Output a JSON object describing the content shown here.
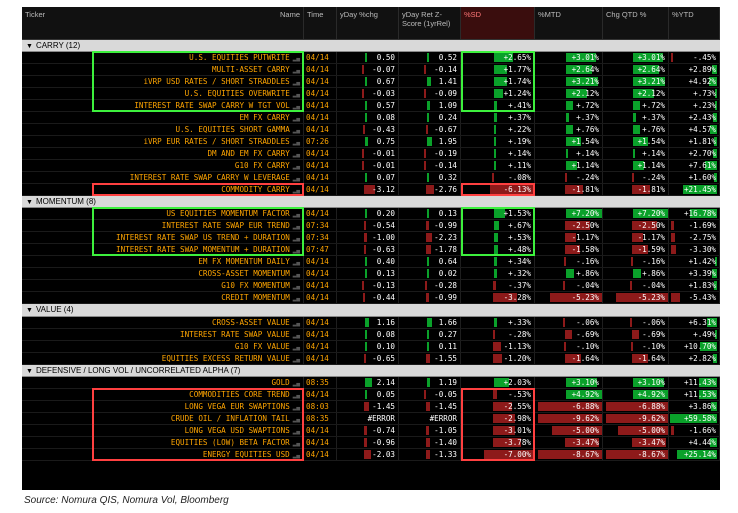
{
  "header": {
    "ticker": "Ticker",
    "name": "Name",
    "time": "Time",
    "yday_chg": "yDay %chg",
    "yday_ret_z": "yDay Ret Z-Score (1yrRel)",
    "sd": "%SD",
    "mtd": "%MTD",
    "qtd": "Chg QTD %",
    "ytd": "%YTD"
  },
  "sections": [
    {
      "title": "CARRY (12)",
      "rows": [
        {
          "name": "U.S. EQUITIES PUTWRITE",
          "time": "04/14",
          "yd": "0.50",
          "rz": "0.52",
          "sd": "+2.65%",
          "mtd": "+3.01%",
          "qtd": "+3.01%",
          "ytd": "-.45%"
        },
        {
          "name": "MULTI-ASSET CARRY",
          "time": "04/14",
          "yd": "-0.07",
          "rz": "-0.14",
          "sd": "+1.77%",
          "mtd": "+2.64%",
          "qtd": "+2.64%",
          "ytd": "+2.89%"
        },
        {
          "name": "iVRP USD RATES / SHORT STRADDLES",
          "time": "04/14",
          "yd": "0.67",
          "rz": "1.41",
          "sd": "+1.74%",
          "mtd": "+3.21%",
          "qtd": "+3.21%",
          "ytd": "+4.92%"
        },
        {
          "name": "U.S. EQUITIES OVERWRITE",
          "time": "04/14",
          "yd": "-0.03",
          "rz": "-0.09",
          "sd": "+1.24%",
          "mtd": "+2.12%",
          "qtd": "+2.12%",
          "ytd": "+.73%"
        },
        {
          "name": "INTEREST RATE SWAP CARRY W TGT VOL",
          "time": "04/14",
          "yd": "0.57",
          "rz": "1.09",
          "sd": "+.41%",
          "mtd": "+.72%",
          "qtd": "+.72%",
          "ytd": "+.23%"
        },
        {
          "name": "EM FX CARRY",
          "time": "04/14",
          "yd": "0.08",
          "rz": "0.24",
          "sd": "+.37%",
          "mtd": "+.37%",
          "qtd": "+.37%",
          "ytd": "+2.43%"
        },
        {
          "name": "U.S. EQUITIES SHORT GAMMA",
          "time": "04/14",
          "yd": "-0.43",
          "rz": "-0.67",
          "sd": "+.22%",
          "mtd": "+.76%",
          "qtd": "+.76%",
          "ytd": "+4.57%"
        },
        {
          "name": "iVRP EUR RATES / SHORT STRADDLES",
          "time": "07:26",
          "yd": "0.75",
          "rz": "1.95",
          "sd": "+.19%",
          "mtd": "+1.54%",
          "qtd": "+1.54%",
          "ytd": "+1.81%"
        },
        {
          "name": "DM AND EM FX CARRY",
          "time": "04/14",
          "yd": "-0.01",
          "rz": "-0.19",
          "sd": "+.14%",
          "mtd": "+.14%",
          "qtd": "+.14%",
          "ytd": "+2.70%"
        },
        {
          "name": "G10 FX CARRY",
          "time": "04/14",
          "yd": "-0.01",
          "rz": "-0.14",
          "sd": "+.11%",
          "mtd": "+1.14%",
          "qtd": "+1.14%",
          "ytd": "+7.61%"
        },
        {
          "name": "INTEREST RATE SWAP CARRY W LEVERAGE",
          "time": "04/14",
          "yd": "0.07",
          "rz": "0.32",
          "sd": "-.08%",
          "mtd": "-.24%",
          "qtd": "-.24%",
          "ytd": "+1.60%"
        },
        {
          "name": "COMMODITY CARRY",
          "time": "04/14",
          "yd": "-3.12",
          "rz": "-2.76",
          "sd": "-6.13%",
          "mtd": "-1.81%",
          "qtd": "-1.81%",
          "ytd": "+21.45%"
        }
      ]
    },
    {
      "title": "MOMENTUM (8)",
      "rows": [
        {
          "name": "US EQUITIES MOMENTUM FACTOR",
          "time": "04/14",
          "yd": "0.20",
          "rz": "0.13",
          "sd": "+1.53%",
          "mtd": "+7.20%",
          "qtd": "+7.20%",
          "ytd": "+16.78%"
        },
        {
          "name": "INTEREST RATE SWAP EUR TREND",
          "time": "07:34",
          "yd": "-0.54",
          "rz": "-0.99",
          "sd": "+.67%",
          "mtd": "-2.50%",
          "qtd": "-2.50%",
          "ytd": "-1.69%"
        },
        {
          "name": "INTEREST RATE SWAP US TREND + DURATION",
          "time": "07:34",
          "yd": "-1.00",
          "rz": "-2.23",
          "sd": "+.53%",
          "mtd": "-1.17%",
          "qtd": "-1.17%",
          "ytd": "-2.75%"
        },
        {
          "name": "INTEREST RATE SWAP MOMENTUM + DURATION",
          "time": "07:47",
          "yd": "-0.63",
          "rz": "-1.78",
          "sd": "+.48%",
          "mtd": "-1.58%",
          "qtd": "-1.59%",
          "ytd": "-3.30%"
        },
        {
          "name": "EM FX MOMENTUM DAILY",
          "time": "04/14",
          "yd": "0.40",
          "rz": "0.64",
          "sd": "+.34%",
          "mtd": "-.16%",
          "qtd": "-.16%",
          "ytd": "+1.42%"
        },
        {
          "name": "CROSS-ASSET MOMENTUM",
          "time": "04/14",
          "yd": "0.13",
          "rz": "0.02",
          "sd": "+.32%",
          "mtd": "+.86%",
          "qtd": "+.86%",
          "ytd": "+3.39%"
        },
        {
          "name": "G10 FX MOMENTUM",
          "time": "04/14",
          "yd": "-0.13",
          "rz": "-0.28",
          "sd": "-.37%",
          "mtd": "-.04%",
          "qtd": "-.04%",
          "ytd": "+1.83%"
        },
        {
          "name": "CREDIT MOMENTUM",
          "time": "04/14",
          "yd": "-0.44",
          "rz": "-0.99",
          "sd": "-3.28%",
          "mtd": "-5.23%",
          "qtd": "-5.23%",
          "ytd": "-5.43%"
        }
      ]
    },
    {
      "title": "VALUE (4)",
      "rows": [
        {
          "name": "CROSS-ASSET VALUE",
          "time": "04/14",
          "yd": "1.16",
          "rz": "1.66",
          "sd": "+.33%",
          "mtd": "-.06%",
          "qtd": "-.06%",
          "ytd": "+6.31%"
        },
        {
          "name": "INTEREST RATE SWAP VALUE",
          "time": "04/14",
          "yd": "0.08",
          "rz": "0.27",
          "sd": "-.28%",
          "mtd": "-.69%",
          "qtd": "-.69%",
          "ytd": "+.49%"
        },
        {
          "name": "G10 FX VALUE",
          "time": "04/14",
          "yd": "0.10",
          "rz": "0.11",
          "sd": "-1.13%",
          "mtd": "-.10%",
          "qtd": "-.10%",
          "ytd": "+10.70%"
        },
        {
          "name": "EQUITIES EXCESS RETURN VALUE",
          "time": "04/14",
          "yd": "-0.65",
          "rz": "-1.55",
          "sd": "-1.20%",
          "mtd": "-1.64%",
          "qtd": "-1.64%",
          "ytd": "+2.82%"
        }
      ]
    },
    {
      "title": "DEFENSIVE / LONG VOL / UNCORRELATED ALPHA (7)",
      "rows": [
        {
          "name": "GOLD",
          "time": "08:35",
          "yd": "2.14",
          "rz": "1.19",
          "sd": "+2.03%",
          "mtd": "+3.10%",
          "qtd": "+3.10%",
          "ytd": "+11.43%"
        },
        {
          "name": "COMMODITIES CORE TREND",
          "time": "04/14",
          "yd": "0.05",
          "rz": "-0.05",
          "sd": "-.53%",
          "mtd": "+4.92%",
          "qtd": "+4.92%",
          "ytd": "+11.53%"
        },
        {
          "name": "LONG VEGA EUR SWAPTIONS",
          "time": "08:03",
          "yd": "-1.45",
          "rz": "-1.45",
          "sd": "-2.55%",
          "mtd": "-6.88%",
          "qtd": "-6.88%",
          "ytd": "+3.86%"
        },
        {
          "name": "CRUDE OIL / INFLATION TAIL",
          "time": "08:35",
          "yd": "#ERROR",
          "rz": "#ERROR",
          "sd": "-2.98%",
          "mtd": "-9.62%",
          "qtd": "-9.62%",
          "ytd": "+59.58%"
        },
        {
          "name": "LONG VEGA USD SWAPTIONS",
          "time": "04/14",
          "yd": "-0.74",
          "rz": "-1.05",
          "sd": "-3.01%",
          "mtd": "-5.00%",
          "qtd": "-5.00%",
          "ytd": "-1.66%"
        },
        {
          "name": "EQUITIES (LOW) BETA FACTOR",
          "time": "04/14",
          "yd": "-0.96",
          "rz": "-1.40",
          "sd": "-3.78%",
          "mtd": "-3.47%",
          "qtd": "-3.47%",
          "ytd": "+4.44%"
        },
        {
          "name": "ENERGY EQUITIES USD",
          "time": "04/14",
          "yd": "-2.03",
          "rz": "-1.33",
          "sd": "-7.00%",
          "mtd": "-8.67%",
          "qtd": "-8.67%",
          "ytd": "+25.14%"
        }
      ]
    }
  ],
  "source": "Source: Nomura QIS, Nomura Vol, Bloomberg",
  "colors": {
    "accent": "#ffa500",
    "positive": "#0aa12a",
    "negative": "#8d1a1a",
    "highlight_green": "#3df03d",
    "highlight_red": "#ff4040"
  }
}
